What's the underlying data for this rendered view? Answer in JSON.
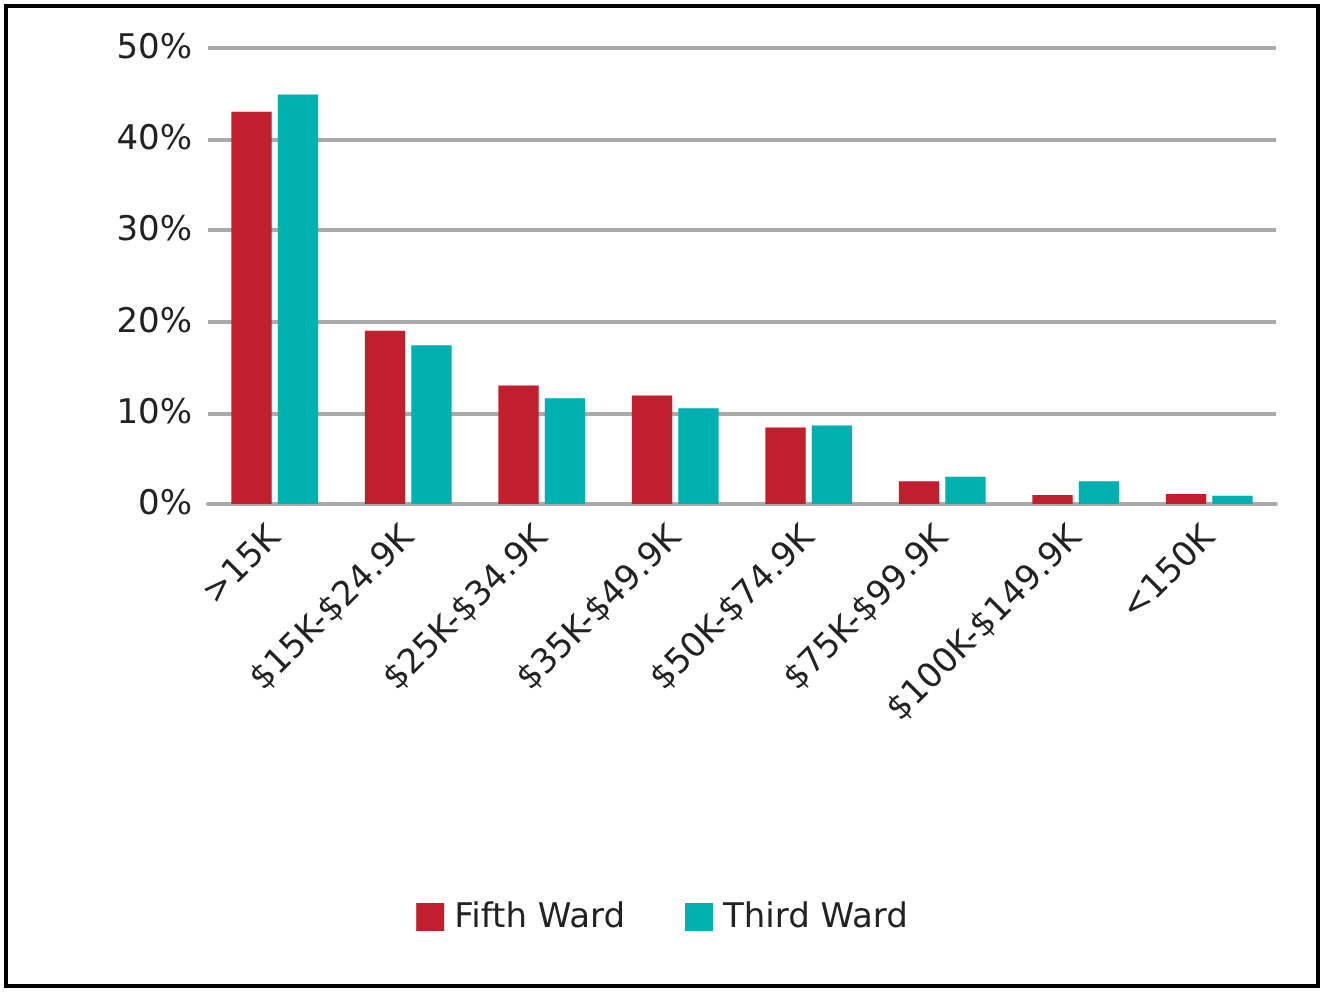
{
  "chart_data": {
    "type": "bar",
    "categories": [
      ">15K",
      "$15K-$24.9K",
      "$25K-$34.9K",
      "$35K-$49.9K",
      "$50K-$74.9K",
      "$75K-$99.9K",
      "$100K-$149.9K",
      "<150K"
    ],
    "series": [
      {
        "name": "Fifth Ward",
        "color": "#c0202e",
        "values": [
          43,
          19,
          13,
          11.9,
          8.4,
          2.5,
          1,
          1.1
        ]
      },
      {
        "name": "Third Ward",
        "color": "#00b0b0",
        "values": [
          44.9,
          17.4,
          11.6,
          10.5,
          8.6,
          3,
          2.5,
          0.9
        ]
      }
    ],
    "ylim": [
      0,
      50
    ],
    "yticks": [
      {
        "value": 0,
        "label": "0%"
      },
      {
        "value": 10,
        "label": "10%"
      },
      {
        "value": 20,
        "label": "20%"
      },
      {
        "value": 30,
        "label": "30%"
      },
      {
        "value": 40,
        "label": "40%"
      },
      {
        "value": 50,
        "label": "50%"
      }
    ],
    "grid": "y",
    "legend": "bottom"
  }
}
